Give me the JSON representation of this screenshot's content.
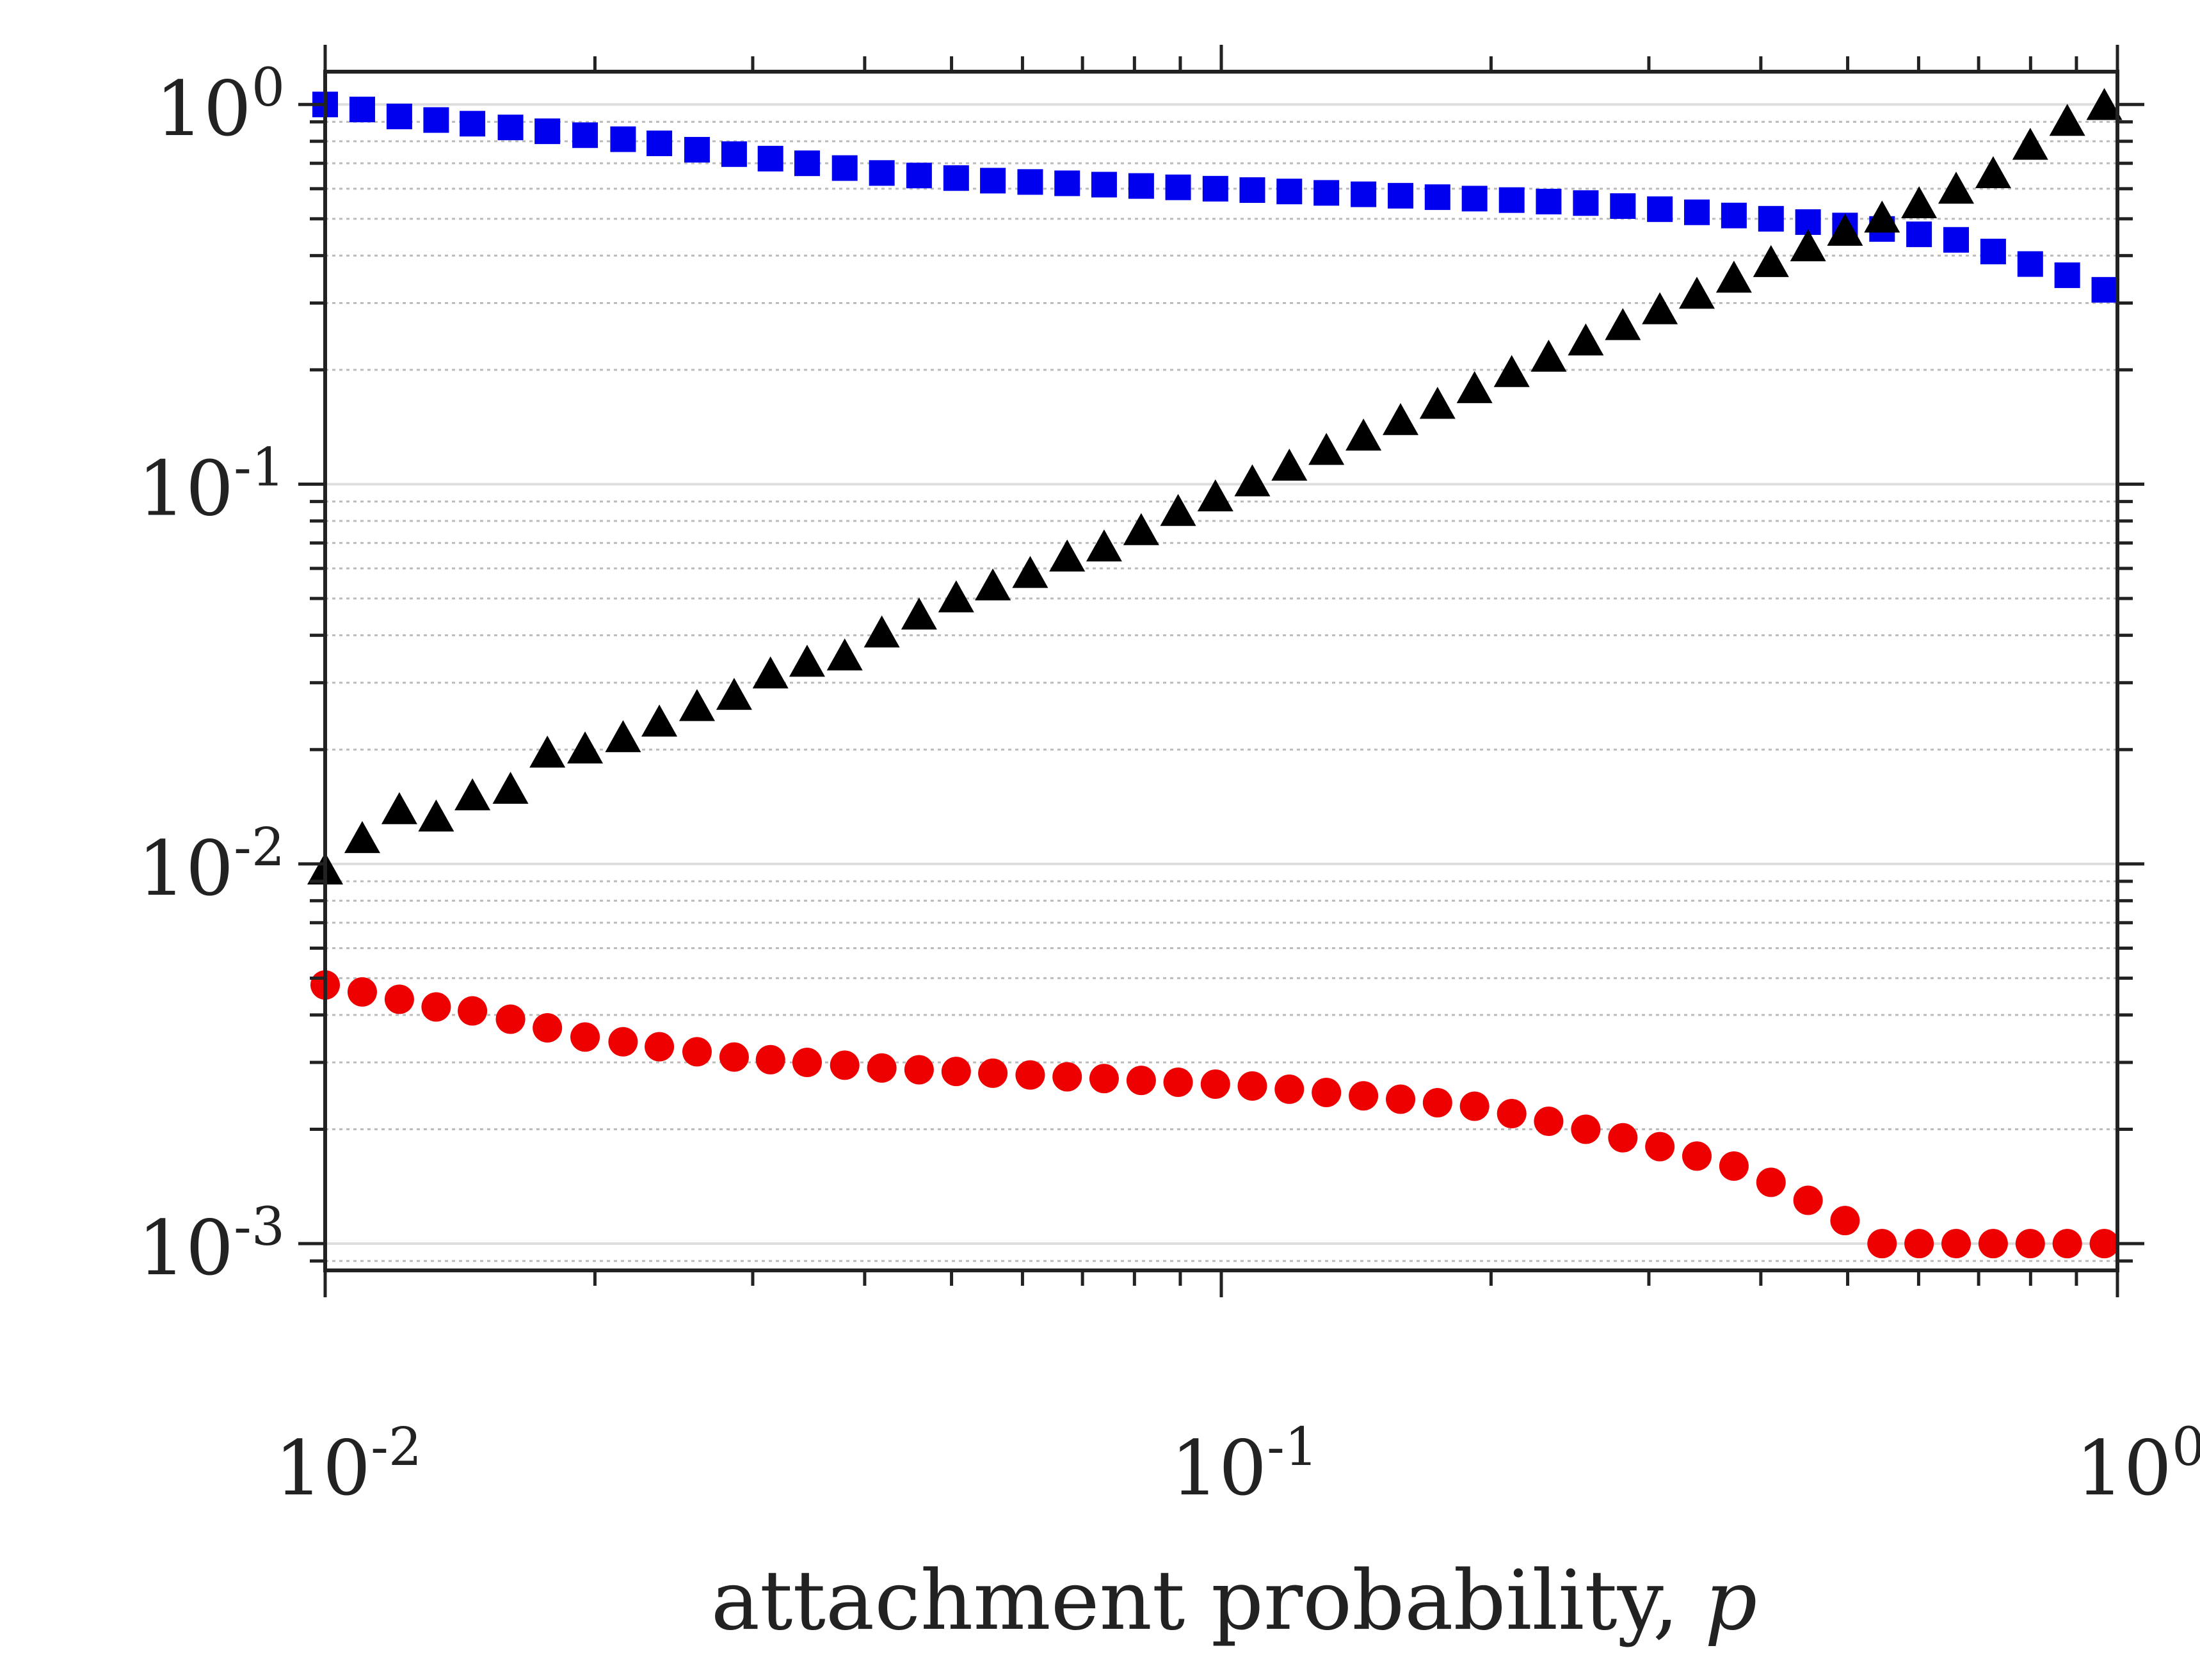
{
  "chart_data": {
    "type": "scatter",
    "title": "",
    "xlabel": "attachment probability, ",
    "xlabel_var": "p",
    "ylabel": "",
    "xscale": "log",
    "yscale": "log",
    "xlim": [
      0.01,
      1
    ],
    "ylim": [
      0.00085,
      1.22
    ],
    "grid": "y major and minor",
    "x_ticks": [
      {
        "value": 0.01,
        "base": "10",
        "exp": "-2"
      },
      {
        "value": 0.1,
        "base": "10",
        "exp": "-1"
      },
      {
        "value": 1,
        "base": "10",
        "exp": "0"
      }
    ],
    "y_ticks": [
      {
        "value": 1,
        "base": "10",
        "exp": "0"
      },
      {
        "value": 0.1,
        "base": "10",
        "exp": "-1"
      },
      {
        "value": 0.01,
        "base": "10",
        "exp": "-2"
      },
      {
        "value": 0.001,
        "base": "10",
        "exp": "-3"
      }
    ],
    "x": [
      0.01,
      0.011,
      0.0121,
      0.0133,
      0.0146,
      0.0161,
      0.0177,
      0.0195,
      0.0215,
      0.0236,
      0.026,
      0.0286,
      0.0314,
      0.0345,
      0.038,
      0.0418,
      0.046,
      0.0506,
      0.0556,
      0.0612,
      0.0673,
      0.074,
      0.0814,
      0.0895,
      0.0985,
      0.1083,
      0.1191,
      0.131,
      0.1441,
      0.1585,
      0.1743,
      0.1917,
      0.2109,
      0.2319,
      0.2551,
      0.2806,
      0.3086,
      0.3394,
      0.3733,
      0.4106,
      0.4516,
      0.4966,
      0.5462,
      0.6007,
      0.6607,
      0.7267,
      0.7993,
      0.8791,
      0.9669
    ],
    "series": [
      {
        "name": "blue squares",
        "color": "#0000ee",
        "marker": "square",
        "values": [
          1.0,
          0.97,
          0.93,
          0.91,
          0.89,
          0.87,
          0.85,
          0.83,
          0.81,
          0.79,
          0.76,
          0.74,
          0.72,
          0.7,
          0.68,
          0.66,
          0.65,
          0.64,
          0.63,
          0.625,
          0.62,
          0.615,
          0.61,
          0.605,
          0.6,
          0.595,
          0.59,
          0.585,
          0.58,
          0.575,
          0.57,
          0.565,
          0.56,
          0.555,
          0.55,
          0.54,
          0.53,
          0.52,
          0.51,
          0.5,
          0.49,
          0.48,
          0.47,
          0.455,
          0.44,
          0.41,
          0.38,
          0.355,
          0.325
        ]
      },
      {
        "name": "black triangles",
        "color": "#000000",
        "marker": "triangle",
        "x": [
          0.01,
          0.011,
          0.0121,
          0.0133,
          0.0146,
          0.0161,
          0.0177,
          0.0195,
          0.0215,
          0.0236,
          0.026,
          0.0286,
          0.0314,
          0.0345,
          0.038,
          0.0418,
          0.046,
          0.0506,
          0.0556,
          0.0612,
          0.0673,
          0.074,
          0.0814,
          0.0895,
          0.0985,
          0.1083,
          0.1191,
          0.131,
          0.1441,
          0.1585,
          0.1743,
          0.1917,
          0.2109,
          0.2319,
          0.2551,
          0.2806,
          0.3086,
          0.3394,
          0.3733,
          0.4106,
          0.4516,
          0.4966,
          0.5462,
          0.6007,
          0.6607,
          0.7267,
          0.7993,
          0.8791,
          0.9669
        ],
        "values": [
          0.0095,
          0.0115,
          0.0137,
          0.0131,
          0.0149,
          0.0155,
          0.0193,
          0.0198,
          0.0212,
          0.0233,
          0.0256,
          0.0274,
          0.0312,
          0.0335,
          0.0348,
          0.04,
          0.0446,
          0.0495,
          0.0532,
          0.0574,
          0.0634,
          0.0674,
          0.0744,
          0.0836,
          0.0913,
          0.1,
          0.11,
          0.121,
          0.132,
          0.145,
          0.16,
          0.176,
          0.194,
          0.213,
          0.235,
          0.258,
          0.284,
          0.312,
          0.344,
          0.378,
          0.416,
          0.457,
          0.495,
          0.54,
          0.59,
          0.648,
          0.77,
          0.89,
          0.98
        ]
      },
      {
        "name": "red circles",
        "color": "#ee0000",
        "marker": "circle",
        "values": [
          0.0048,
          0.0046,
          0.0044,
          0.0042,
          0.0041,
          0.0039,
          0.0037,
          0.0035,
          0.0034,
          0.0033,
          0.0032,
          0.0031,
          0.00305,
          0.003,
          0.00295,
          0.0029,
          0.00287,
          0.00284,
          0.00281,
          0.00278,
          0.00275,
          0.00272,
          0.00269,
          0.00266,
          0.00263,
          0.0026,
          0.00255,
          0.0025,
          0.00245,
          0.0024,
          0.00235,
          0.0023,
          0.0022,
          0.0021,
          0.002,
          0.0019,
          0.0018,
          0.0017,
          0.0016,
          0.00145,
          0.0013,
          0.00115,
          0.001,
          0.001,
          0.001,
          0.001,
          0.001,
          0.001,
          0.001
        ]
      }
    ]
  }
}
